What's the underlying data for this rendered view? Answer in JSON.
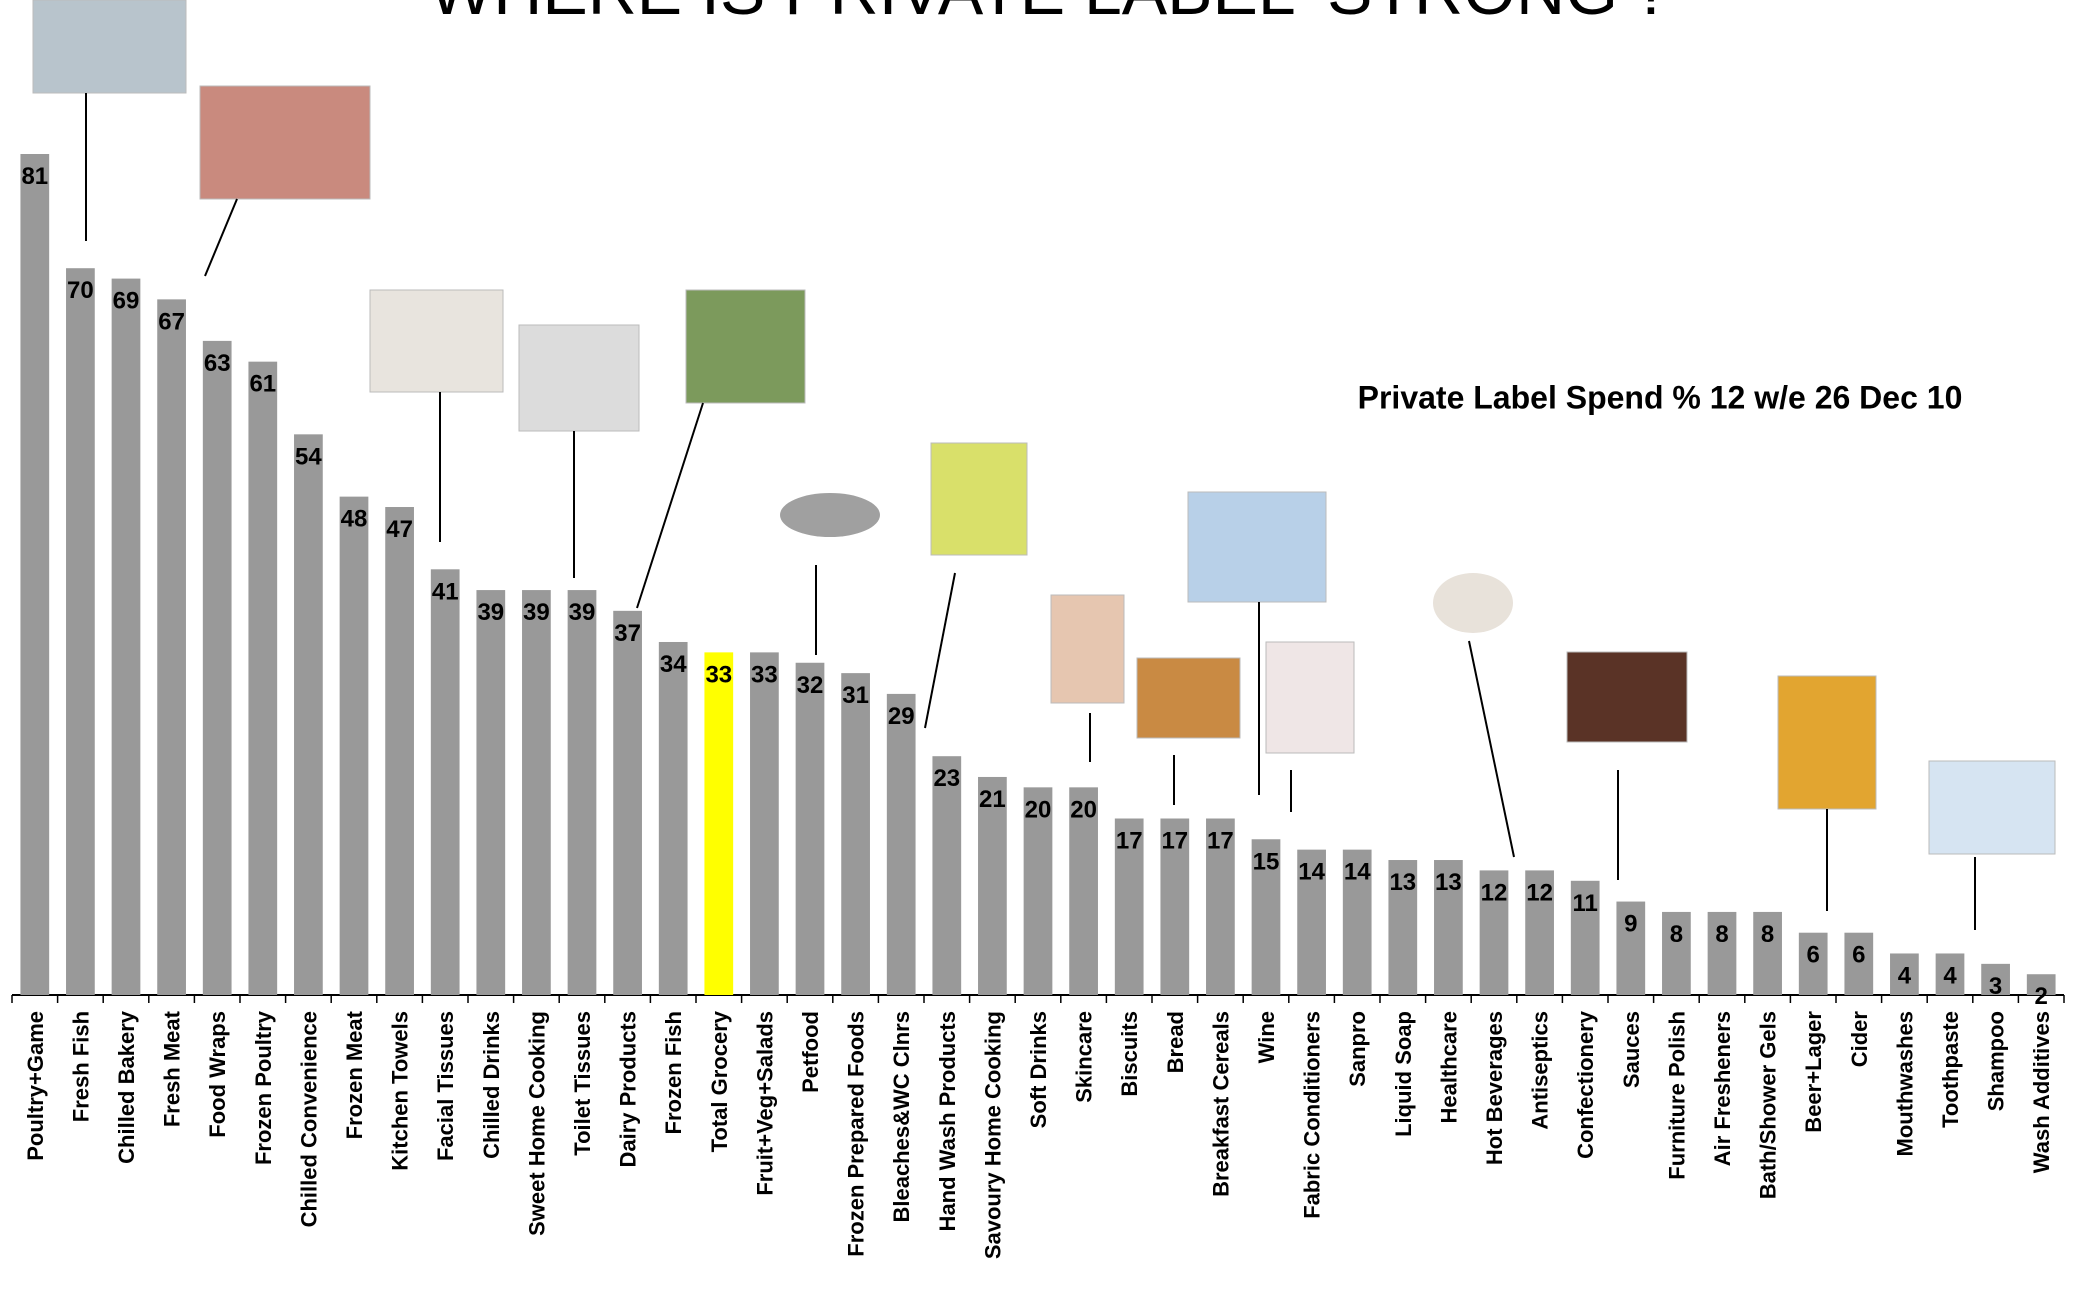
{
  "chart_data": {
    "type": "bar",
    "title": "WHERE IS PRIVATE LABEL ‘STRONG’?",
    "subtitle": "Private Label Spend % 12 w/e 26 Dec 10",
    "categories": [
      "Poultry+Game",
      "Fresh Fish",
      "Chilled Bakery",
      "Fresh Meat",
      "Food Wraps",
      "Frozen Poultry",
      "Chilled Convenience",
      "Frozen Meat",
      "Kitchen Towels",
      "Facial Tissues",
      "Chilled Drinks",
      "Sweet Home Cooking",
      "Toilet Tissues",
      "Dairy Products",
      "Frozen Fish",
      "Total Grocery",
      "Fruit+Veg+Salads",
      "Petfood",
      "Frozen Prepared Foods",
      "Bleaches&WC Clnrs",
      "Hand Wash Products",
      "Savoury Home Cooking",
      "Soft Drinks",
      "Skincare",
      "Biscuits",
      "Bread",
      "Breakfast Cereals",
      "Wine",
      "Fabric Conditioners",
      "Sanpro",
      "Liquid Soap",
      "Healthcare",
      "Hot Beverages",
      "Antiseptics",
      "Confectionery",
      "Sauces",
      "Furniture Polish",
      "Air Fresheners",
      "Bath/Shower Gels",
      "Beer+Lager",
      "Cider",
      "Mouthwashes",
      "Toothpaste",
      "Shampoo",
      "Wash Additives"
    ],
    "values": [
      81,
      70,
      69,
      67,
      63,
      61,
      54,
      48,
      47,
      41,
      39,
      39,
      39,
      37,
      34,
      33,
      33,
      32,
      31,
      29,
      23,
      21,
      20,
      20,
      17,
      17,
      17,
      15,
      14,
      14,
      13,
      13,
      12,
      12,
      11,
      9,
      8,
      8,
      8,
      6,
      6,
      4,
      4,
      3,
      2
    ],
    "colors": [
      "#999999",
      "#999999",
      "#999999",
      "#999999",
      "#999999",
      "#999999",
      "#999999",
      "#999999",
      "#999999",
      "#999999",
      "#999999",
      "#999999",
      "#999999",
      "#999999",
      "#999999",
      "#ffff00",
      "#999999",
      "#999999",
      "#999999",
      "#999999",
      "#999999",
      "#999999",
      "#999999",
      "#999999",
      "#999999",
      "#999999",
      "#999999",
      "#999999",
      "#999999",
      "#999999",
      "#999999",
      "#999999",
      "#999999",
      "#999999",
      "#999999",
      "#999999",
      "#999999",
      "#999999",
      "#999999",
      "#999999",
      "#999999",
      "#999999",
      "#999999",
      "#999999",
      "#999999"
    ]
  }
}
